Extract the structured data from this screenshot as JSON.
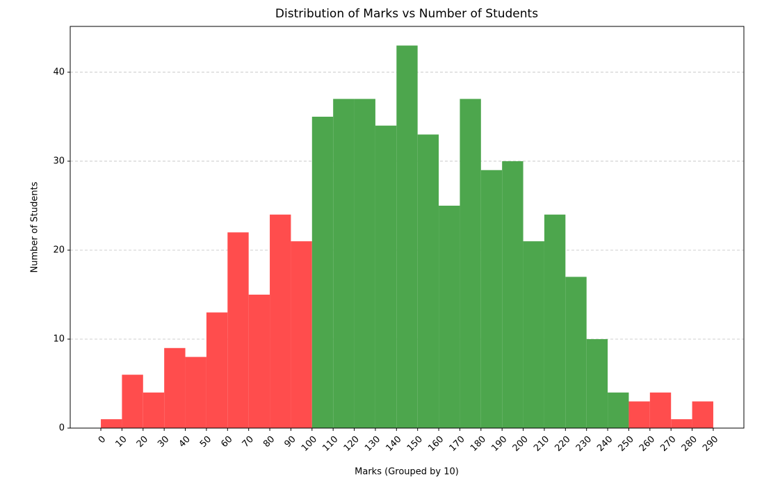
{
  "chart_data": {
    "type": "histogram",
    "title": "Distribution of Marks vs Number of Students",
    "x_label": "Marks (Grouped by 10)",
    "y_label": "Number of Students",
    "bins": [
      0,
      10,
      20,
      30,
      40,
      50,
      60,
      70,
      80,
      90,
      100,
      110,
      120,
      130,
      140,
      150,
      160,
      170,
      180,
      190,
      200,
      210,
      220,
      230,
      240,
      250,
      260,
      270,
      280,
      290
    ],
    "values": [
      1,
      6,
      4,
      9,
      8,
      13,
      22,
      15,
      24,
      21,
      35,
      37,
      37,
      34,
      43,
      33,
      25,
      37,
      29,
      30,
      21,
      24,
      17,
      10,
      4,
      3,
      4,
      1,
      3
    ],
    "colors": [
      "#ff4d4d",
      "#ff4d4d",
      "#ff4d4d",
      "#ff4d4d",
      "#ff4d4d",
      "#ff4d4d",
      "#ff4d4d",
      "#ff4d4d",
      "#ff4d4d",
      "#ff4d4d",
      "#4da64d",
      "#4da64d",
      "#4da64d",
      "#4da64d",
      "#4da64d",
      "#4da64d",
      "#4da64d",
      "#4da64d",
      "#4da64d",
      "#4da64d",
      "#4da64d",
      "#4da64d",
      "#4da64d",
      "#4da64d",
      "#4da64d",
      "#ff4d4d",
      "#ff4d4d",
      "#ff4d4d",
      "#ff4d4d"
    ],
    "xlim": [
      -14.5,
      304.5
    ],
    "xticks": [
      0,
      10,
      20,
      30,
      40,
      50,
      60,
      70,
      80,
      90,
      100,
      110,
      120,
      130,
      140,
      150,
      160,
      170,
      180,
      190,
      200,
      210,
      220,
      230,
      240,
      250,
      260,
      270,
      280,
      290
    ],
    "ylim": [
      0,
      45.15
    ],
    "yticks": [
      0,
      10,
      20,
      30,
      40
    ],
    "grid": true
  }
}
